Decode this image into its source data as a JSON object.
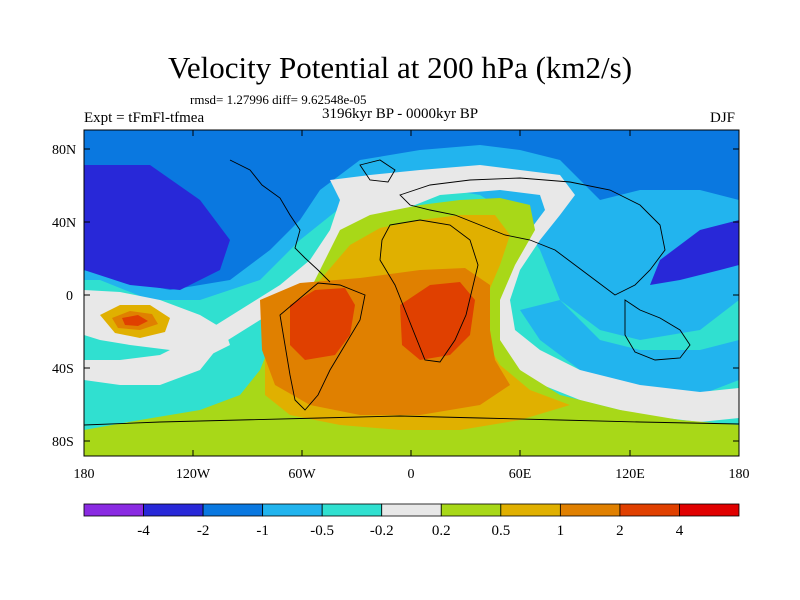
{
  "header": {
    "title": "Velocity Potential at 200 hPa (km2/s)",
    "stats": "rmsd= 1.27996 diff= 9.62548e-05",
    "experiment": "Expt = tFmFl-tfmea",
    "period": "3196kyr BP - 0000kyr BP",
    "season": "DJF"
  },
  "axes": {
    "lat_labels": [
      "80N",
      "40N",
      "0",
      "40S",
      "80S"
    ],
    "lon_labels": [
      "180",
      "120W",
      "60W",
      "0",
      "60E",
      "120E",
      "180"
    ]
  },
  "colorbar": {
    "labels": [
      "-4",
      "-2",
      "-1",
      "-0.5",
      "-0.2",
      "0.2",
      "0.5",
      "1",
      "2",
      "4"
    ],
    "colors": [
      "#8a2be2",
      "#2828d8",
      "#0a78e0",
      "#22b4ee",
      "#30e0d0",
      "#e8e8e8",
      "#a8d818",
      "#e0b000",
      "#e08000",
      "#e04000",
      "#e00000"
    ]
  },
  "colors": {
    "deep_negative": "#2828d8",
    "negative": "#0a78e0",
    "light_negative": "#22b4ee",
    "cyan": "#30e0d0",
    "neutral": "#e8e8e8",
    "light_positive": "#a8d818",
    "positive": "#e0b000",
    "strong_positive": "#e08000",
    "max_positive": "#e04000"
  }
}
